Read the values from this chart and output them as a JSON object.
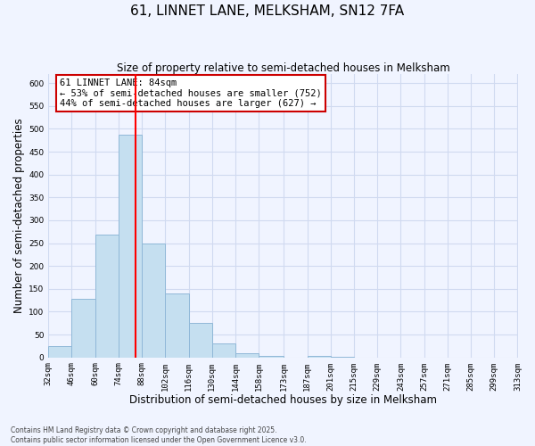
{
  "title": "61, LINNET LANE, MELKSHAM, SN12 7FA",
  "subtitle": "Size of property relative to semi-detached houses in Melksham",
  "xlabel": "Distribution of semi-detached houses by size in Melksham",
  "ylabel": "Number of semi-detached properties",
  "bin_labels": [
    "32sqm",
    "46sqm",
    "60sqm",
    "74sqm",
    "88sqm",
    "102sqm",
    "116sqm",
    "130sqm",
    "144sqm",
    "158sqm",
    "173sqm",
    "187sqm",
    "201sqm",
    "215sqm",
    "229sqm",
    "243sqm",
    "257sqm",
    "271sqm",
    "285sqm",
    "299sqm",
    "313sqm"
  ],
  "bin_edges": [
    32,
    46,
    60,
    74,
    88,
    102,
    116,
    130,
    144,
    158,
    173,
    187,
    201,
    215,
    229,
    243,
    257,
    271,
    285,
    299,
    313
  ],
  "bar_heights": [
    25,
    128,
    268,
    487,
    250,
    140,
    76,
    31,
    10,
    3,
    0,
    4,
    2,
    0,
    0,
    0,
    0,
    0,
    0,
    0
  ],
  "bar_color": "#c5dff0",
  "bar_edge_color": "#90b8d8",
  "vline_x": 84,
  "vline_color": "red",
  "annotation_title": "61 LINNET LANE: 84sqm",
  "annotation_line1": "← 53% of semi-detached houses are smaller (752)",
  "annotation_line2": "44% of semi-detached houses are larger (627) →",
  "annotation_box_color": "white",
  "annotation_box_edge_color": "#cc0000",
  "ylim": [
    0,
    620
  ],
  "yticks": [
    0,
    50,
    100,
    150,
    200,
    250,
    300,
    350,
    400,
    450,
    500,
    550,
    600
  ],
  "footnote1": "Contains HM Land Registry data © Crown copyright and database right 2025.",
  "footnote2": "Contains public sector information licensed under the Open Government Licence v3.0.",
  "background_color": "#f0f4ff",
  "grid_color": "#d0daf0",
  "title_fontsize": 11,
  "subtitle_fontsize": 8.5,
  "tick_label_fontsize": 6.5,
  "axis_label_fontsize": 8.5,
  "annot_fontsize": 7.5
}
